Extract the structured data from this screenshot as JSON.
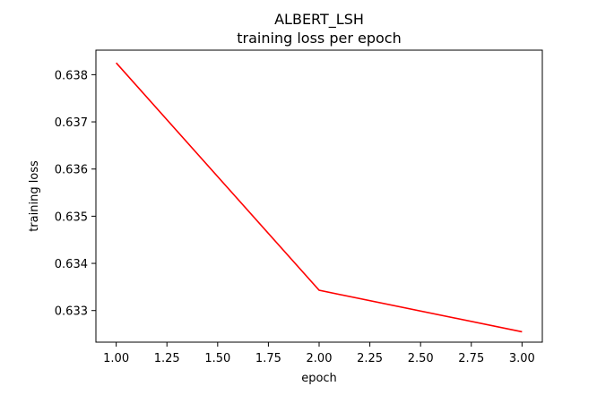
{
  "chart_data": {
    "type": "line",
    "title": "ALBERT_LSH",
    "subtitle": "training loss per epoch",
    "xlabel": "epoch",
    "ylabel": "training loss",
    "xlim": [
      0.9,
      3.1
    ],
    "ylim": [
      0.63233,
      0.63852
    ],
    "xticks": [
      "1.00",
      "1.25",
      "1.50",
      "1.75",
      "2.00",
      "2.25",
      "2.50",
      "2.75",
      "3.00"
    ],
    "yticks": [
      "0.633",
      "0.634",
      "0.635",
      "0.636",
      "0.637",
      "0.638"
    ],
    "grid": false,
    "series": [
      {
        "color": "#ff0000",
        "x": [
          1,
          2,
          3
        ],
        "y": [
          0.63825,
          0.63343,
          0.63255
        ]
      }
    ]
  }
}
